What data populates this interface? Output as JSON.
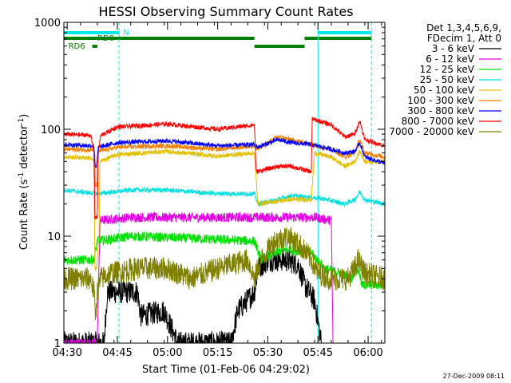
{
  "chart_data": {
    "type": "line",
    "title": "HESSI Observing Summary Count Rates",
    "xlabel": "Start Time (01-Feb-06 04:29:02)",
    "ylabel": "Count Rate (s⁻¹ detector⁻¹)",
    "ylabel_parts": {
      "main": "Count Rate (s",
      "sup1": "-1",
      "mid": " detector",
      "sup2": "-1",
      "end": ")"
    },
    "y_scale": "log",
    "ylim": [
      1,
      1000
    ],
    "xlim_minutes": [
      0,
      96
    ],
    "x_ticks": [
      {
        "t": 1,
        "label": "04:30"
      },
      {
        "t": 16,
        "label": "04:45"
      },
      {
        "t": 31,
        "label": "05:00"
      },
      {
        "t": 46,
        "label": "05:15"
      },
      {
        "t": 61,
        "label": "05:30"
      },
      {
        "t": 76,
        "label": "05:45"
      },
      {
        "t": 91,
        "label": "06:00"
      }
    ],
    "y_ticks": [
      {
        "v": 1,
        "label": "1"
      },
      {
        "v": 10,
        "label": "10"
      },
      {
        "v": 100,
        "label": "100"
      },
      {
        "v": 1000,
        "label": "1000"
      }
    ],
    "legend_header": [
      "Det 1,3,4,5,6,9,",
      "FDecim 1, Att 0"
    ],
    "legend_position": "right",
    "series": [
      {
        "name": "3 - 6 keV",
        "color": "#000000",
        "points": [
          [
            0,
            1
          ],
          [
            10,
            1
          ],
          [
            12,
            1
          ],
          [
            13,
            3
          ],
          [
            22,
            3
          ],
          [
            23,
            1.8
          ],
          [
            30,
            2
          ],
          [
            34,
            1
          ],
          [
            50,
            1
          ],
          [
            52,
            2
          ],
          [
            57,
            3
          ],
          [
            58,
            5
          ],
          [
            61,
            6
          ],
          [
            64,
            6
          ],
          [
            66,
            6
          ],
          [
            70,
            5.5
          ],
          [
            72,
            3.5
          ],
          [
            75,
            2.5
          ],
          [
            77,
            1
          ]
        ]
      },
      {
        "name": "6 - 12 keV",
        "color": "#e000e0",
        "points": [
          [
            0,
            1
          ],
          [
            10,
            1
          ],
          [
            10.8,
            14
          ],
          [
            20,
            15
          ],
          [
            40,
            15
          ],
          [
            57,
            15
          ],
          [
            65,
            15
          ],
          [
            75,
            15
          ],
          [
            80,
            14
          ],
          [
            80.5,
            1
          ]
        ]
      },
      {
        "name": "12 - 25 keV",
        "color": "#00e000",
        "points": [
          [
            0,
            6
          ],
          [
            9,
            6
          ],
          [
            10,
            9
          ],
          [
            20,
            10
          ],
          [
            40,
            9.5
          ],
          [
            57,
            9
          ],
          [
            59,
            6
          ],
          [
            63,
            7
          ],
          [
            67,
            7.5
          ],
          [
            74,
            7
          ],
          [
            78,
            5
          ],
          [
            83,
            4.5
          ],
          [
            86,
            4
          ],
          [
            87.5,
            5
          ],
          [
            88.5,
            4.5
          ],
          [
            89,
            3.5
          ],
          [
            96,
            3.5
          ]
        ]
      },
      {
        "name": "25 - 50 keV",
        "color": "#00e0e0",
        "points": [
          [
            0,
            27
          ],
          [
            10,
            25
          ],
          [
            20,
            27
          ],
          [
            31,
            27
          ],
          [
            46,
            25
          ],
          [
            57,
            25
          ],
          [
            58,
            20
          ],
          [
            64,
            22
          ],
          [
            68,
            24
          ],
          [
            74,
            23
          ],
          [
            79,
            22
          ],
          [
            84,
            20
          ],
          [
            87,
            22
          ],
          [
            88.5,
            26
          ],
          [
            90,
            22
          ],
          [
            96,
            20
          ]
        ]
      },
      {
        "name": "50 - 100 keV",
        "color": "#e0c000",
        "points": [
          [
            0,
            55
          ],
          [
            8,
            54
          ],
          [
            9,
            50
          ],
          [
            9.3,
            5
          ],
          [
            9.8,
            5
          ],
          [
            10.5,
            10
          ],
          [
            10.8,
            50
          ],
          [
            16,
            58
          ],
          [
            31,
            62
          ],
          [
            46,
            56
          ],
          [
            57,
            60
          ],
          [
            58,
            20
          ],
          [
            67,
            22
          ],
          [
            74,
            22
          ],
          [
            75,
            60
          ],
          [
            80,
            55
          ],
          [
            84,
            45
          ],
          [
            87,
            50
          ],
          [
            88.5,
            62
          ],
          [
            90,
            50
          ],
          [
            96,
            50
          ]
        ]
      },
      {
        "name": "100 - 300 keV",
        "color": "#f08000",
        "points": [
          [
            0,
            65
          ],
          [
            9,
            64
          ],
          [
            9.4,
            30
          ],
          [
            9.8,
            30
          ],
          [
            10.3,
            62
          ],
          [
            16,
            68
          ],
          [
            31,
            70
          ],
          [
            46,
            65
          ],
          [
            57,
            70
          ],
          [
            58,
            65
          ],
          [
            64,
            85
          ],
          [
            68,
            80
          ],
          [
            74,
            72
          ],
          [
            80,
            65
          ],
          [
            84,
            55
          ],
          [
            87,
            60
          ],
          [
            88.5,
            80
          ],
          [
            90,
            60
          ],
          [
            96,
            55
          ]
        ]
      },
      {
        "name": "300 - 800 keV",
        "color": "#0000ff",
        "points": [
          [
            0,
            72
          ],
          [
            9,
            70
          ],
          [
            9.4,
            45
          ],
          [
            9.8,
            45
          ],
          [
            10.3,
            68
          ],
          [
            16,
            75
          ],
          [
            31,
            78
          ],
          [
            46,
            70
          ],
          [
            57,
            72
          ],
          [
            58,
            68
          ],
          [
            64,
            80
          ],
          [
            68,
            75
          ],
          [
            74,
            72
          ],
          [
            80,
            65
          ],
          [
            84,
            60
          ],
          [
            87,
            62
          ],
          [
            88.5,
            75
          ],
          [
            90,
            55
          ],
          [
            96,
            48
          ]
        ]
      },
      {
        "name": "800 - 7000 keV",
        "color": "#ff0000",
        "points": [
          [
            0,
            90
          ],
          [
            8,
            88
          ],
          [
            9,
            62
          ],
          [
            9.3,
            15
          ],
          [
            10,
            15
          ],
          [
            10.3,
            60
          ],
          [
            11,
            87
          ],
          [
            16,
            105
          ],
          [
            31,
            112
          ],
          [
            46,
            100
          ],
          [
            57,
            110
          ],
          [
            57.5,
            40
          ],
          [
            64,
            45
          ],
          [
            68,
            45
          ],
          [
            74,
            40
          ],
          [
            74.3,
            125
          ],
          [
            80,
            110
          ],
          [
            84,
            85
          ],
          [
            87,
            90
          ],
          [
            88.5,
            120
          ],
          [
            90,
            80
          ],
          [
            96,
            70
          ]
        ]
      },
      {
        "name": "7000 - 20000 keV",
        "color": "#808000",
        "points": [
          [
            0,
            4
          ],
          [
            8,
            4
          ],
          [
            9,
            3
          ],
          [
            9.5,
            1.8
          ],
          [
            10,
            3
          ],
          [
            11,
            4
          ],
          [
            14,
            4.5
          ],
          [
            22,
            5
          ],
          [
            31,
            5
          ],
          [
            38,
            4
          ],
          [
            46,
            5
          ],
          [
            55,
            6
          ],
          [
            57,
            4
          ],
          [
            59,
            6
          ],
          [
            63,
            9
          ],
          [
            67,
            10
          ],
          [
            71,
            8
          ],
          [
            74,
            6
          ],
          [
            76,
            4.5
          ],
          [
            80,
            4
          ],
          [
            85,
            4
          ],
          [
            87,
            5
          ],
          [
            88,
            6
          ],
          [
            90,
            4.5
          ],
          [
            96,
            4
          ]
        ]
      }
    ],
    "flags": [
      {
        "label": "N",
        "color": "#00e8e8",
        "segments": [
          [
            0,
            16.5
          ],
          [
            76,
            92
          ]
        ],
        "level": 1
      },
      {
        "label": "RD0",
        "color": "#008000",
        "segments": [
          [
            0,
            57
          ],
          [
            72,
            92
          ]
        ],
        "level": 2
      },
      {
        "label": "",
        "color": "#008000",
        "segments": [
          [
            57,
            72
          ]
        ],
        "level": 3
      },
      {
        "label": "RD6",
        "color": "#008000",
        "segments": [
          [
            8.5,
            10
          ]
        ],
        "level": 3
      }
    ],
    "vlines": [
      {
        "t": 0,
        "color": "#00e8e8",
        "dashed": false
      },
      {
        "t": 16.5,
        "color": "#00e8e8",
        "dashed": true
      },
      {
        "t": 76,
        "color": "#00e8e8",
        "dashed": false
      },
      {
        "t": 92,
        "color": "#00e8e8",
        "dashed": true
      }
    ],
    "footer_date": "27-Dec-2009 08:11"
  }
}
